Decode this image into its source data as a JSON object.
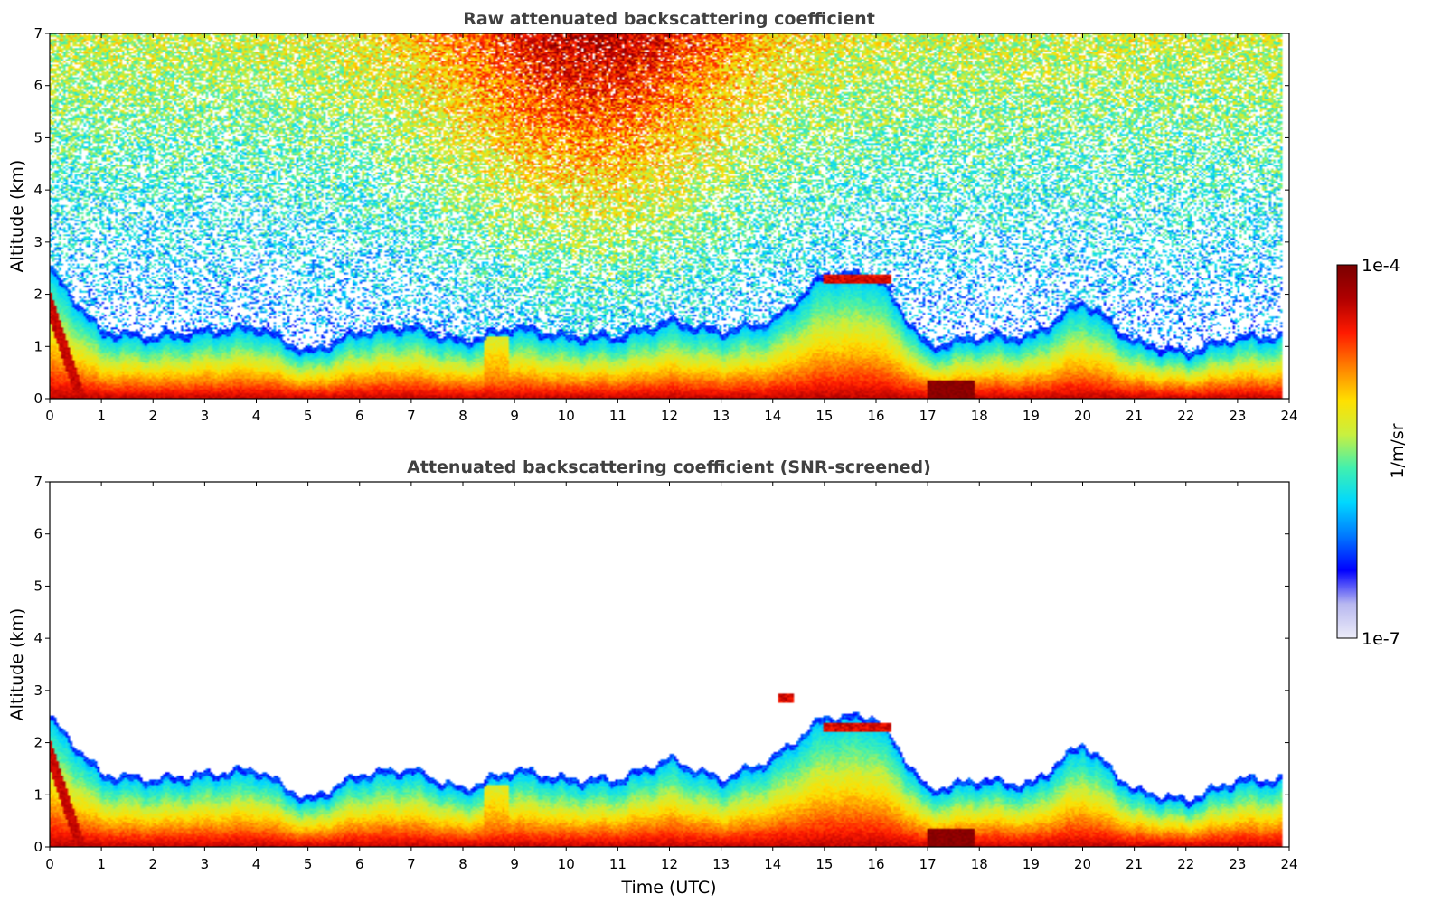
{
  "chart_data": [
    {
      "type": "heatmap",
      "title": "Raw attenuated backscattering coefficient",
      "xlabel": "",
      "ylabel": "Altitude (km)",
      "xlim": [
        0,
        24
      ],
      "ylim": [
        0,
        7
      ],
      "x_ticks": [
        "0",
        "1",
        "2",
        "3",
        "4",
        "5",
        "6",
        "7",
        "8",
        "9",
        "10",
        "11",
        "12",
        "13",
        "14",
        "15",
        "16",
        "17",
        "18",
        "19",
        "20",
        "21",
        "22",
        "23",
        "24"
      ],
      "y_ticks": [
        "0",
        "1",
        "2",
        "3",
        "4",
        "5",
        "6",
        "7"
      ],
      "layer_top_km_by_hour": [
        2.4,
        1.2,
        1.1,
        1.2,
        1.3,
        0.8,
        1.2,
        1.3,
        1.0,
        1.3,
        1.1,
        1.1,
        1.4,
        1.2,
        1.4,
        2.3,
        2.3,
        0.9,
        1.1,
        1.1,
        1.8,
        1.0,
        0.8,
        1.1,
        1.1
      ],
      "elevated_layers": [
        {
          "time_start": 15.0,
          "time_end": 16.3,
          "altitude_km": 2.3
        }
      ],
      "noise": "heavy above boundary layer",
      "grid": false
    },
    {
      "type": "heatmap",
      "title": "Attenuated backscattering coefficient (SNR-screened)",
      "xlabel": "Time (UTC)",
      "ylabel": "Altitude (km)",
      "xlim": [
        0,
        24
      ],
      "ylim": [
        0,
        7
      ],
      "x_ticks": [
        "0",
        "1",
        "2",
        "3",
        "4",
        "5",
        "6",
        "7",
        "8",
        "9",
        "10",
        "11",
        "12",
        "13",
        "14",
        "15",
        "16",
        "17",
        "18",
        "19",
        "20",
        "21",
        "22",
        "23",
        "24"
      ],
      "y_ticks": [
        "0",
        "1",
        "2",
        "3",
        "4",
        "5",
        "6",
        "7"
      ],
      "layer_top_km_by_hour": [
        2.4,
        1.3,
        1.2,
        1.3,
        1.4,
        0.8,
        1.3,
        1.4,
        1.0,
        1.4,
        1.2,
        1.2,
        1.6,
        1.2,
        1.6,
        2.4,
        2.4,
        1.0,
        1.2,
        1.1,
        1.9,
        1.0,
        0.8,
        1.2,
        1.2
      ],
      "elevated_layers": [
        {
          "time_start": 14.1,
          "time_end": 14.4,
          "altitude_km": 2.85
        },
        {
          "time_start": 15.0,
          "time_end": 16.3,
          "altitude_km": 2.3
        }
      ],
      "noise": "none",
      "grid": false
    }
  ],
  "colorbar": {
    "label": "1/m/sr",
    "max_label": "1e-4",
    "min_label": "1e-7",
    "colormap": [
      "#ececf8",
      "#b8b8f0",
      "#0000ff",
      "#0078ff",
      "#00d8ff",
      "#40f0b0",
      "#c8f040",
      "#ffe000",
      "#ff8000",
      "#ff1a00",
      "#b00000",
      "#7a0000"
    ]
  }
}
